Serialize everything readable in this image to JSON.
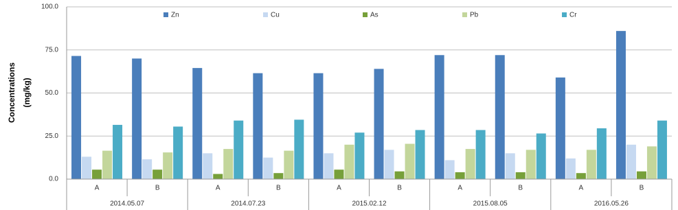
{
  "chart_data": {
    "type": "bar",
    "ylabel": [
      "Concentrations",
      "(mg/kg)"
    ],
    "categories": [
      "A",
      "B",
      "A",
      "B",
      "A",
      "B",
      "A",
      "B",
      "A",
      "B"
    ],
    "groups": [
      "2014.05.07",
      "2014.07.23",
      "2015.02.12",
      "2015.08.05",
      "2016.05.26"
    ],
    "series": [
      {
        "name": "Zn",
        "color": "#4a7ebb",
        "values": [
          71.5,
          70,
          64.5,
          61.5,
          61.5,
          64,
          72,
          72,
          59,
          86
        ]
      },
      {
        "name": "Cu",
        "color": "#c6d9f1",
        "values": [
          13,
          11.5,
          15,
          12.5,
          15,
          17,
          11,
          15,
          12,
          20
        ]
      },
      {
        "name": "As",
        "color": "#77a03a",
        "values": [
          5.5,
          5.5,
          3,
          3.5,
          5.5,
          4.5,
          4,
          4,
          3.5,
          4.5
        ]
      },
      {
        "name": "Pb",
        "color": "#c3d69b",
        "values": [
          16.5,
          15.5,
          17.5,
          16.5,
          20,
          20.5,
          17.5,
          17,
          17,
          19
        ]
      },
      {
        "name": "Cr",
        "color": "#4bacc6",
        "values": [
          31.5,
          30.5,
          34,
          34.5,
          27,
          28.5,
          28.5,
          26.5,
          29.5,
          34
        ]
      }
    ],
    "ylim": [
      0,
      100
    ],
    "yticks": [
      {
        "value": 0,
        "label": "0.0"
      },
      {
        "value": 25,
        "label": "25.0"
      },
      {
        "value": 50,
        "label": "50.0"
      },
      {
        "value": 75,
        "label": "75.0"
      },
      {
        "value": 100,
        "label": "100.0"
      }
    ],
    "grid": true
  }
}
